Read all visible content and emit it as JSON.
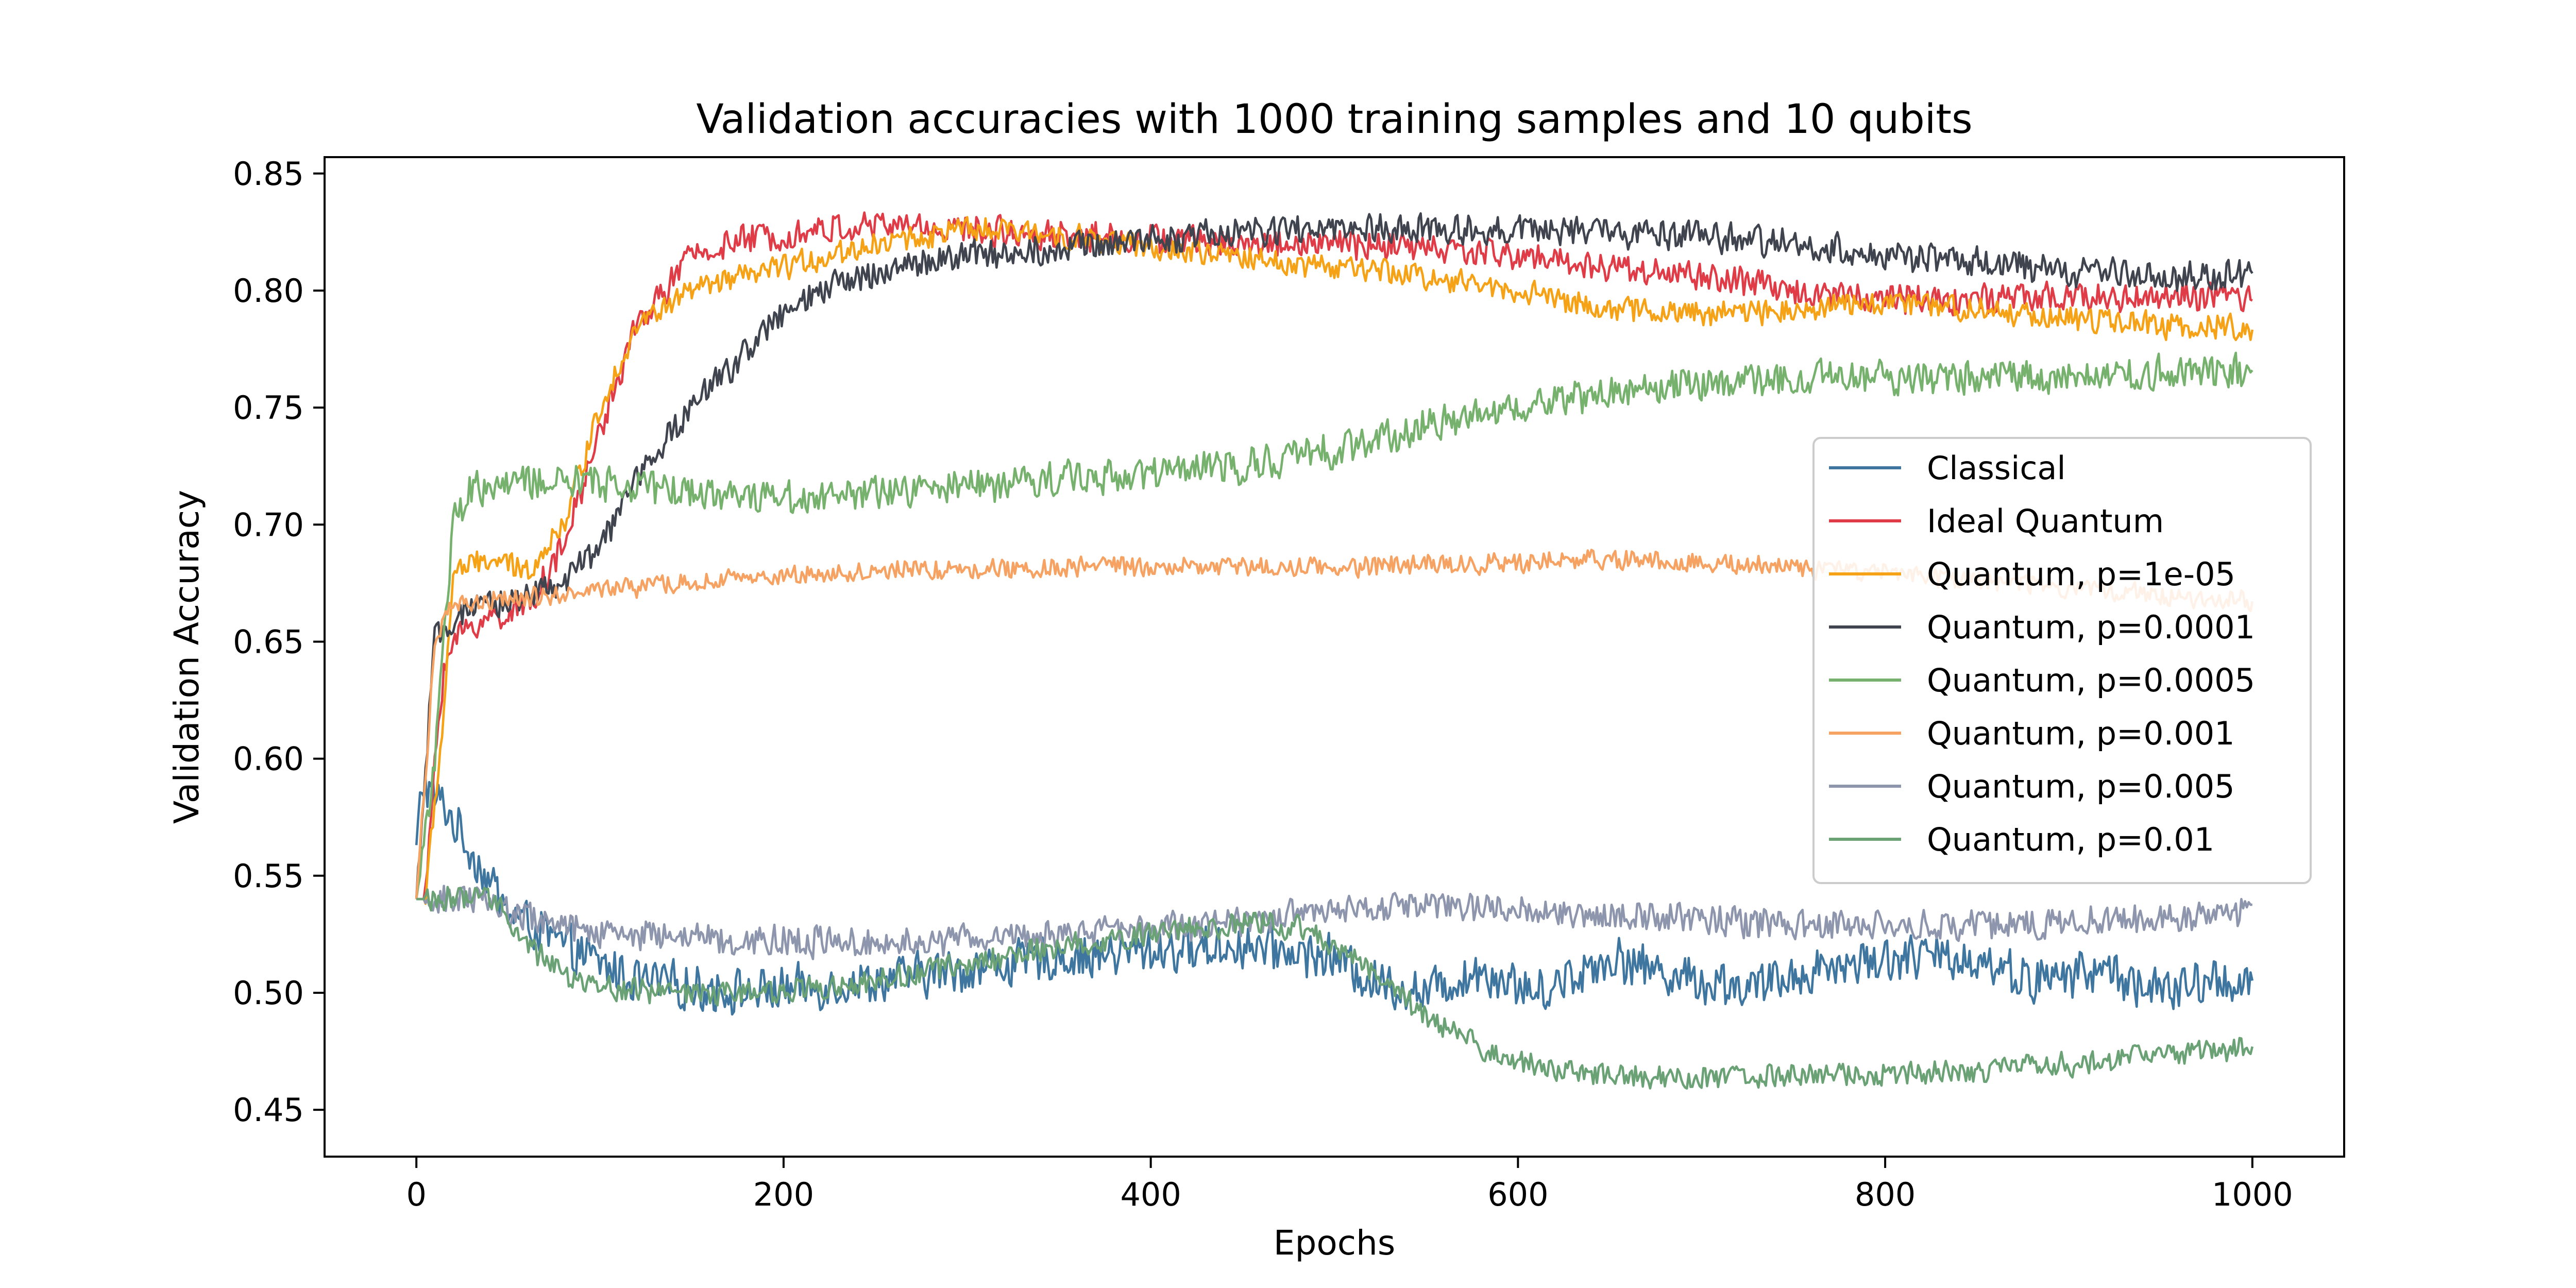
{
  "chart_data": {
    "type": "line",
    "title": "Validation accuracies with 1000 training samples and 10 qubits",
    "xlabel": "Epochs",
    "ylabel": "Validation Accuracy",
    "xlim": [
      -50,
      1050
    ],
    "ylim": [
      0.43,
      0.857
    ],
    "xticks": [
      0,
      200,
      400,
      600,
      800,
      1000
    ],
    "xtick_labels": [
      "0",
      "200",
      "400",
      "600",
      "800",
      "1000"
    ],
    "yticks": [
      0.45,
      0.5,
      0.55,
      0.6,
      0.65,
      0.7,
      0.75,
      0.8,
      0.85
    ],
    "ytick_labels": [
      "0.45",
      "0.50",
      "0.55",
      "0.60",
      "0.65",
      "0.70",
      "0.75",
      "0.80",
      "0.85"
    ],
    "grid": false,
    "legend_position": "center-right",
    "series": [
      {
        "name": "Classical",
        "color": "#3f76a0",
        "noise": 0.009,
        "points": [
          [
            0,
            0.56
          ],
          [
            3,
            0.59
          ],
          [
            8,
            0.585
          ],
          [
            15,
            0.58
          ],
          [
            30,
            0.56
          ],
          [
            50,
            0.535
          ],
          [
            80,
            0.52
          ],
          [
            120,
            0.505
          ],
          [
            180,
            0.5
          ],
          [
            250,
            0.505
          ],
          [
            300,
            0.51
          ],
          [
            350,
            0.515
          ],
          [
            400,
            0.518
          ],
          [
            450,
            0.52
          ],
          [
            500,
            0.515
          ],
          [
            520,
            0.505
          ],
          [
            550,
            0.5
          ],
          [
            580,
            0.51
          ],
          [
            610,
            0.5
          ],
          [
            650,
            0.515
          ],
          [
            700,
            0.505
          ],
          [
            730,
            0.502
          ],
          [
            760,
            0.51
          ],
          [
            800,
            0.515
          ],
          [
            850,
            0.515
          ],
          [
            880,
            0.505
          ],
          [
            920,
            0.51
          ],
          [
            950,
            0.5
          ],
          [
            980,
            0.505
          ],
          [
            1000,
            0.505
          ]
        ]
      },
      {
        "name": "Ideal Quantum",
        "color": "#e03c48",
        "noise": 0.006,
        "points": [
          [
            0,
            0.54
          ],
          [
            5,
            0.54
          ],
          [
            10,
            0.6
          ],
          [
            15,
            0.64
          ],
          [
            25,
            0.655
          ],
          [
            40,
            0.66
          ],
          [
            60,
            0.665
          ],
          [
            80,
            0.69
          ],
          [
            100,
            0.74
          ],
          [
            120,
            0.785
          ],
          [
            150,
            0.815
          ],
          [
            180,
            0.822
          ],
          [
            220,
            0.826
          ],
          [
            260,
            0.828
          ],
          [
            300,
            0.826
          ],
          [
            350,
            0.824
          ],
          [
            400,
            0.822
          ],
          [
            450,
            0.82
          ],
          [
            500,
            0.82
          ],
          [
            550,
            0.818
          ],
          [
            600,
            0.815
          ],
          [
            650,
            0.81
          ],
          [
            700,
            0.806
          ],
          [
            750,
            0.8
          ],
          [
            800,
            0.797
          ],
          [
            850,
            0.796
          ],
          [
            900,
            0.797
          ],
          [
            950,
            0.797
          ],
          [
            1000,
            0.797
          ]
        ]
      },
      {
        "name": "Quantum, p=1e-05",
        "color": "#f5a217",
        "noise": 0.005,
        "points": [
          [
            0,
            0.54
          ],
          [
            5,
            0.54
          ],
          [
            15,
            0.62
          ],
          [
            20,
            0.68
          ],
          [
            40,
            0.685
          ],
          [
            60,
            0.68
          ],
          [
            80,
            0.7
          ],
          [
            100,
            0.75
          ],
          [
            120,
            0.785
          ],
          [
            150,
            0.8
          ],
          [
            200,
            0.81
          ],
          [
            250,
            0.82
          ],
          [
            300,
            0.826
          ],
          [
            350,
            0.824
          ],
          [
            400,
            0.818
          ],
          [
            450,
            0.814
          ],
          [
            500,
            0.81
          ],
          [
            550,
            0.806
          ],
          [
            600,
            0.8
          ],
          [
            650,
            0.792
          ],
          [
            700,
            0.79
          ],
          [
            750,
            0.792
          ],
          [
            800,
            0.795
          ],
          [
            850,
            0.792
          ],
          [
            900,
            0.788
          ],
          [
            950,
            0.785
          ],
          [
            1000,
            0.784
          ]
        ]
      },
      {
        "name": "Quantum, p=0.0001",
        "color": "#3f444e",
        "noise": 0.006,
        "points": [
          [
            0,
            0.54
          ],
          [
            10,
            0.65
          ],
          [
            20,
            0.66
          ],
          [
            40,
            0.665
          ],
          [
            60,
            0.67
          ],
          [
            80,
            0.675
          ],
          [
            100,
            0.69
          ],
          [
            120,
            0.72
          ],
          [
            150,
            0.75
          ],
          [
            180,
            0.775
          ],
          [
            200,
            0.79
          ],
          [
            230,
            0.803
          ],
          [
            260,
            0.81
          ],
          [
            300,
            0.815
          ],
          [
            350,
            0.818
          ],
          [
            400,
            0.822
          ],
          [
            450,
            0.825
          ],
          [
            500,
            0.826
          ],
          [
            550,
            0.826
          ],
          [
            600,
            0.826
          ],
          [
            650,
            0.825
          ],
          [
            700,
            0.823
          ],
          [
            750,
            0.82
          ],
          [
            800,
            0.815
          ],
          [
            850,
            0.812
          ],
          [
            900,
            0.808
          ],
          [
            950,
            0.806
          ],
          [
            1000,
            0.806
          ]
        ]
      },
      {
        "name": "Quantum, p=0.0005",
        "color": "#76b26e",
        "noise": 0.007,
        "points": [
          [
            0,
            0.54
          ],
          [
            10,
            0.6
          ],
          [
            20,
            0.7
          ],
          [
            30,
            0.715
          ],
          [
            60,
            0.718
          ],
          [
            100,
            0.718
          ],
          [
            150,
            0.714
          ],
          [
            200,
            0.712
          ],
          [
            250,
            0.713
          ],
          [
            300,
            0.716
          ],
          [
            350,
            0.72
          ],
          [
            400,
            0.722
          ],
          [
            450,
            0.725
          ],
          [
            500,
            0.732
          ],
          [
            550,
            0.742
          ],
          [
            600,
            0.75
          ],
          [
            650,
            0.757
          ],
          [
            700,
            0.76
          ],
          [
            750,
            0.762
          ],
          [
            800,
            0.763
          ],
          [
            850,
            0.763
          ],
          [
            900,
            0.764
          ],
          [
            950,
            0.765
          ],
          [
            1000,
            0.766
          ]
        ]
      },
      {
        "name": "Quantum, p=0.001",
        "color": "#f5a263",
        "noise": 0.004,
        "points": [
          [
            0,
            0.54
          ],
          [
            10,
            0.65
          ],
          [
            20,
            0.665
          ],
          [
            50,
            0.668
          ],
          [
            100,
            0.672
          ],
          [
            150,
            0.675
          ],
          [
            200,
            0.678
          ],
          [
            250,
            0.68
          ],
          [
            300,
            0.681
          ],
          [
            350,
            0.682
          ],
          [
            400,
            0.682
          ],
          [
            450,
            0.682
          ],
          [
            500,
            0.682
          ],
          [
            550,
            0.683
          ],
          [
            600,
            0.684
          ],
          [
            650,
            0.685
          ],
          [
            700,
            0.684
          ],
          [
            750,
            0.682
          ],
          [
            800,
            0.679
          ],
          [
            850,
            0.676
          ],
          [
            900,
            0.673
          ],
          [
            950,
            0.67
          ],
          [
            1000,
            0.667
          ]
        ]
      },
      {
        "name": "Quantum, p=0.005",
        "color": "#8e96ae",
        "noise": 0.006,
        "points": [
          [
            0,
            0.54
          ],
          [
            40,
            0.54
          ],
          [
            50,
            0.535
          ],
          [
            80,
            0.528
          ],
          [
            120,
            0.525
          ],
          [
            200,
            0.522
          ],
          [
            250,
            0.522
          ],
          [
            300,
            0.523
          ],
          [
            350,
            0.525
          ],
          [
            400,
            0.527
          ],
          [
            450,
            0.53
          ],
          [
            500,
            0.535
          ],
          [
            550,
            0.537
          ],
          [
            600,
            0.536
          ],
          [
            650,
            0.534
          ],
          [
            700,
            0.531
          ],
          [
            750,
            0.529
          ],
          [
            800,
            0.528
          ],
          [
            850,
            0.529
          ],
          [
            900,
            0.53
          ],
          [
            950,
            0.532
          ],
          [
            1000,
            0.535
          ]
        ]
      },
      {
        "name": "Quantum, p=0.01",
        "color": "#6aa276",
        "noise": 0.005,
        "points": [
          [
            0,
            0.54
          ],
          [
            45,
            0.54
          ],
          [
            60,
            0.52
          ],
          [
            80,
            0.508
          ],
          [
            100,
            0.502
          ],
          [
            150,
            0.5
          ],
          [
            200,
            0.501
          ],
          [
            250,
            0.505
          ],
          [
            300,
            0.512
          ],
          [
            350,
            0.52
          ],
          [
            400,
            0.525
          ],
          [
            450,
            0.53
          ],
          [
            480,
            0.528
          ],
          [
            500,
            0.52
          ],
          [
            520,
            0.51
          ],
          [
            550,
            0.49
          ],
          [
            580,
            0.475
          ],
          [
            600,
            0.47
          ],
          [
            650,
            0.465
          ],
          [
            700,
            0.463
          ],
          [
            750,
            0.465
          ],
          [
            800,
            0.465
          ],
          [
            850,
            0.467
          ],
          [
            900,
            0.47
          ],
          [
            950,
            0.473
          ],
          [
            1000,
            0.476
          ]
        ]
      }
    ]
  }
}
